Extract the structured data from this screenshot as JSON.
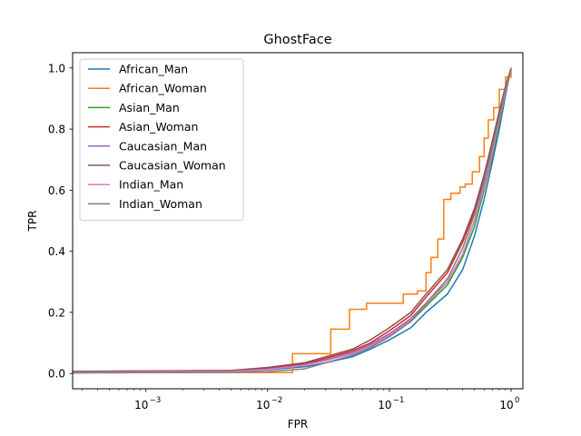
{
  "chart_data": {
    "type": "line",
    "title": "GhostFace",
    "xlabel": "FPR",
    "ylabel": "TPR",
    "xscale": "log",
    "xlim": [
      0.00025,
      1.25
    ],
    "ylim": [
      -0.05,
      1.05
    ],
    "xticks": [
      {
        "value": 0.001,
        "base": "10",
        "exp": "−3"
      },
      {
        "value": 0.01,
        "base": "10",
        "exp": "−2"
      },
      {
        "value": 0.1,
        "base": "10",
        "exp": "−1"
      },
      {
        "value": 1,
        "base": "10",
        "exp": "0"
      }
    ],
    "yticks": [
      {
        "value": 0.0,
        "label": "0.0"
      },
      {
        "value": 0.2,
        "label": "0.2"
      },
      {
        "value": 0.4,
        "label": "0.4"
      },
      {
        "value": 0.6,
        "label": "0.6"
      },
      {
        "value": 0.8,
        "label": "0.8"
      },
      {
        "value": 1.0,
        "label": "1.0"
      }
    ],
    "grid": false,
    "legend_position": "upper left",
    "series": [
      {
        "name": "African_Man",
        "color": "#1f77b4",
        "step": false,
        "points": [
          [
            0.00025,
            0.002
          ],
          [
            0.005,
            0.006
          ],
          [
            0.01,
            0.012
          ],
          [
            0.02,
            0.022
          ],
          [
            0.03,
            0.035
          ],
          [
            0.05,
            0.055
          ],
          [
            0.07,
            0.08
          ],
          [
            0.1,
            0.11
          ],
          [
            0.15,
            0.15
          ],
          [
            0.2,
            0.2
          ],
          [
            0.3,
            0.26
          ],
          [
            0.4,
            0.34
          ],
          [
            0.5,
            0.45
          ],
          [
            0.6,
            0.57
          ],
          [
            0.7,
            0.69
          ],
          [
            0.8,
            0.8
          ],
          [
            0.9,
            0.91
          ],
          [
            1.0,
            1.0
          ]
        ]
      },
      {
        "name": "African_Woman",
        "color": "#ff7f0e",
        "step": true,
        "points": [
          [
            0.00025,
            0.003
          ],
          [
            0.016,
            0.003
          ],
          [
            0.016,
            0.065
          ],
          [
            0.033,
            0.065
          ],
          [
            0.033,
            0.145
          ],
          [
            0.047,
            0.145
          ],
          [
            0.047,
            0.21
          ],
          [
            0.065,
            0.21
          ],
          [
            0.065,
            0.23
          ],
          [
            0.13,
            0.23
          ],
          [
            0.13,
            0.26
          ],
          [
            0.17,
            0.26
          ],
          [
            0.17,
            0.27
          ],
          [
            0.2,
            0.27
          ],
          [
            0.2,
            0.33
          ],
          [
            0.22,
            0.33
          ],
          [
            0.22,
            0.38
          ],
          [
            0.25,
            0.38
          ],
          [
            0.25,
            0.44
          ],
          [
            0.28,
            0.44
          ],
          [
            0.28,
            0.57
          ],
          [
            0.32,
            0.57
          ],
          [
            0.32,
            0.59
          ],
          [
            0.38,
            0.59
          ],
          [
            0.38,
            0.61
          ],
          [
            0.42,
            0.61
          ],
          [
            0.42,
            0.62
          ],
          [
            0.48,
            0.62
          ],
          [
            0.48,
            0.66
          ],
          [
            0.55,
            0.66
          ],
          [
            0.55,
            0.71
          ],
          [
            0.6,
            0.71
          ],
          [
            0.6,
            0.77
          ],
          [
            0.65,
            0.77
          ],
          [
            0.65,
            0.83
          ],
          [
            0.72,
            0.83
          ],
          [
            0.72,
            0.87
          ],
          [
            0.8,
            0.87
          ],
          [
            0.8,
            0.93
          ],
          [
            0.9,
            0.93
          ],
          [
            0.9,
            0.97
          ],
          [
            1.0,
            0.97
          ],
          [
            1.0,
            1.0
          ]
        ]
      },
      {
        "name": "Asian_Man",
        "color": "#2ca02c",
        "step": false,
        "points": [
          [
            0.00025,
            0.005
          ],
          [
            0.005,
            0.008
          ],
          [
            0.01,
            0.015
          ],
          [
            0.02,
            0.03
          ],
          [
            0.03,
            0.045
          ],
          [
            0.05,
            0.065
          ],
          [
            0.07,
            0.09
          ],
          [
            0.1,
            0.125
          ],
          [
            0.15,
            0.17
          ],
          [
            0.2,
            0.22
          ],
          [
            0.3,
            0.29
          ],
          [
            0.4,
            0.38
          ],
          [
            0.5,
            0.48
          ],
          [
            0.6,
            0.6
          ],
          [
            0.7,
            0.71
          ],
          [
            0.8,
            0.82
          ],
          [
            0.9,
            0.92
          ],
          [
            1.0,
            1.0
          ]
        ]
      },
      {
        "name": "Asian_Woman",
        "color": "#d62728",
        "step": false,
        "points": [
          [
            0.00025,
            0.006
          ],
          [
            0.005,
            0.01
          ],
          [
            0.01,
            0.018
          ],
          [
            0.02,
            0.032
          ],
          [
            0.03,
            0.05
          ],
          [
            0.05,
            0.075
          ],
          [
            0.07,
            0.1
          ],
          [
            0.1,
            0.14
          ],
          [
            0.15,
            0.19
          ],
          [
            0.2,
            0.25
          ],
          [
            0.3,
            0.33
          ],
          [
            0.4,
            0.43
          ],
          [
            0.5,
            0.53
          ],
          [
            0.6,
            0.64
          ],
          [
            0.7,
            0.75
          ],
          [
            0.8,
            0.85
          ],
          [
            0.9,
            0.94
          ],
          [
            1.0,
            1.0
          ]
        ]
      },
      {
        "name": "Caucasian_Man",
        "color": "#9467bd",
        "step": false,
        "points": [
          [
            0.00025,
            0.004
          ],
          [
            0.005,
            0.008
          ],
          [
            0.01,
            0.014
          ],
          [
            0.02,
            0.028
          ],
          [
            0.03,
            0.045
          ],
          [
            0.05,
            0.07
          ],
          [
            0.07,
            0.095
          ],
          [
            0.1,
            0.13
          ],
          [
            0.15,
            0.18
          ],
          [
            0.2,
            0.23
          ],
          [
            0.3,
            0.3
          ],
          [
            0.4,
            0.39
          ],
          [
            0.5,
            0.5
          ],
          [
            0.6,
            0.62
          ],
          [
            0.7,
            0.73
          ],
          [
            0.8,
            0.83
          ],
          [
            0.9,
            0.93
          ],
          [
            1.0,
            1.0
          ]
        ]
      },
      {
        "name": "Caucasian_Woman",
        "color": "#8c564b",
        "step": false,
        "points": [
          [
            0.00025,
            0.007
          ],
          [
            0.005,
            0.01
          ],
          [
            0.01,
            0.02
          ],
          [
            0.02,
            0.035
          ],
          [
            0.03,
            0.055
          ],
          [
            0.05,
            0.08
          ],
          [
            0.07,
            0.11
          ],
          [
            0.1,
            0.15
          ],
          [
            0.15,
            0.2
          ],
          [
            0.2,
            0.26
          ],
          [
            0.3,
            0.34
          ],
          [
            0.4,
            0.44
          ],
          [
            0.5,
            0.54
          ],
          [
            0.6,
            0.65
          ],
          [
            0.7,
            0.76
          ],
          [
            0.8,
            0.86
          ],
          [
            0.9,
            0.94
          ],
          [
            1.0,
            1.0
          ]
        ]
      },
      {
        "name": "Indian_Man",
        "color": "#e377c2",
        "step": false,
        "points": [
          [
            0.00025,
            0.004
          ],
          [
            0.005,
            0.007
          ],
          [
            0.01,
            0.013
          ],
          [
            0.02,
            0.027
          ],
          [
            0.03,
            0.042
          ],
          [
            0.05,
            0.065
          ],
          [
            0.07,
            0.09
          ],
          [
            0.1,
            0.125
          ],
          [
            0.15,
            0.175
          ],
          [
            0.2,
            0.225
          ],
          [
            0.3,
            0.3
          ],
          [
            0.4,
            0.39
          ],
          [
            0.5,
            0.5
          ],
          [
            0.6,
            0.61
          ],
          [
            0.7,
            0.72
          ],
          [
            0.8,
            0.83
          ],
          [
            0.9,
            0.92
          ],
          [
            1.0,
            1.0
          ]
        ]
      },
      {
        "name": "Indian_Woman",
        "color": "#7f7f7f",
        "step": false,
        "points": [
          [
            0.00025,
            0.002
          ],
          [
            0.005,
            0.004
          ],
          [
            0.01,
            0.006
          ],
          [
            0.02,
            0.015
          ],
          [
            0.03,
            0.035
          ],
          [
            0.05,
            0.06
          ],
          [
            0.07,
            0.085
          ],
          [
            0.1,
            0.12
          ],
          [
            0.15,
            0.17
          ],
          [
            0.2,
            0.23
          ],
          [
            0.3,
            0.31
          ],
          [
            0.4,
            0.41
          ],
          [
            0.5,
            0.52
          ],
          [
            0.6,
            0.63
          ],
          [
            0.7,
            0.74
          ],
          [
            0.8,
            0.84
          ],
          [
            0.9,
            0.93
          ],
          [
            1.0,
            1.0
          ]
        ]
      }
    ]
  }
}
